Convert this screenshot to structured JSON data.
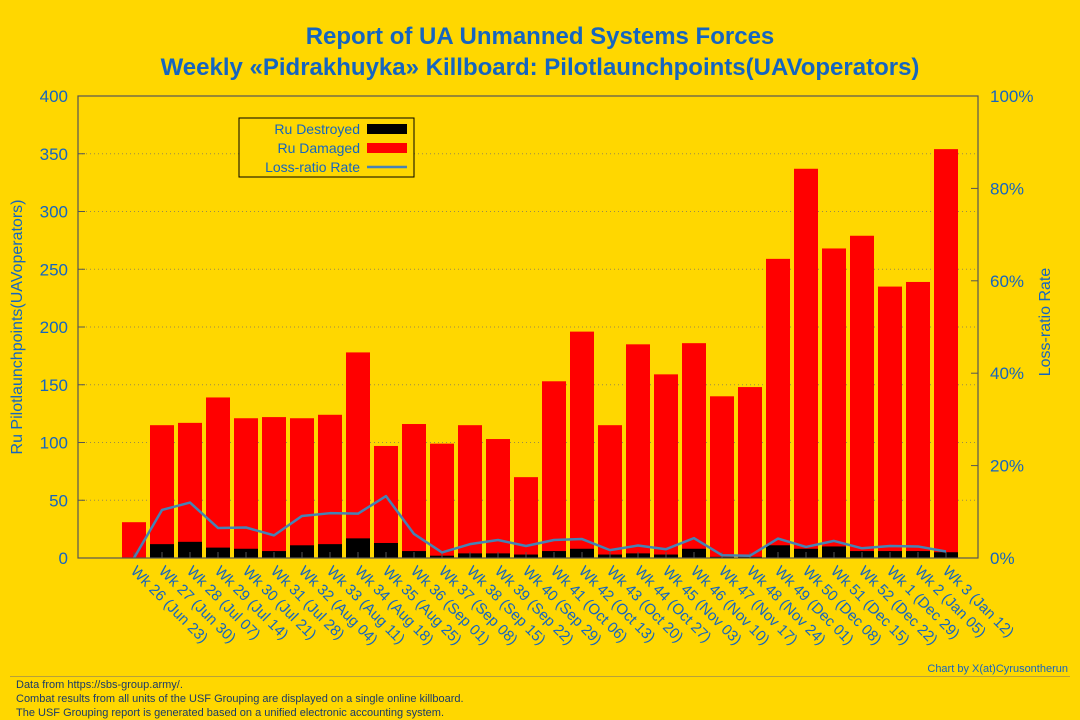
{
  "chart_data": {
    "type": "bar",
    "title": "Report of UA Unmanned Systems Forces",
    "subtitle": "Weekly «Pidrakhuyka» Killboard: Pilotlaunchpoints(UAVoperators)",
    "ylabel": "Ru Pilotlaunchpoints(UAVoperators)",
    "y2label": "Loss-ratio Rate",
    "ylim": [
      0,
      400
    ],
    "y2lim": [
      0,
      100
    ],
    "yticks": [
      "0",
      "50",
      "100",
      "150",
      "200",
      "250",
      "300",
      "350",
      "400"
    ],
    "y2ticks": [
      "0%",
      "20%",
      "40%",
      "60%",
      "80%",
      "100%"
    ],
    "legend_position": "top-left",
    "categories": [
      "Wk 26 (Jun 23)",
      "Wk 27 (Jun 30)",
      "Wk 28 (Jul 07)",
      "Wk 29 (Jul 14)",
      "Wk 30 (Jul 21)",
      "Wk 31 (Jul 28)",
      "Wk 32 (Aug 04)",
      "Wk 33 (Aug 11)",
      "Wk 34 (Aug 18)",
      "Wk 35 (Aug 25)",
      "Wk 36 (Sep 01)",
      "Wk 37 (Sep 08)",
      "Wk 38 (Sep 15)",
      "Wk 39 (Sep 22)",
      "Wk 40 (Sep 29)",
      "Wk 41 (Oct 06)",
      "Wk 42 (Oct 13)",
      "Wk 43 (Oct 20)",
      "Wk 44 (Oct 27)",
      "Wk 45 (Nov 03)",
      "Wk 46 (Nov 10)",
      "Wk 47 (Nov 17)",
      "Wk 48 (Nov 24)",
      "Wk 49 (Dec 01)",
      "Wk 50 (Dec 08)",
      "Wk 51 (Dec 15)",
      "Wk 52 (Dec 22)",
      "Wk 1 (Dec 29)",
      "Wk 2 (Jan 05)",
      "Wk 3 (Jan 12)"
    ],
    "series": [
      {
        "name": "Ru Destroyed",
        "color": "#000000",
        "values": [
          0,
          12,
          14,
          9,
          8,
          6,
          11,
          12,
          17,
          13,
          6,
          2,
          4,
          4,
          3,
          6,
          8,
          3,
          4,
          3,
          8,
          1,
          1,
          11,
          8,
          10,
          6,
          6,
          6,
          5
        ]
      },
      {
        "name": "Ru Damaged",
        "color": "#FF0000",
        "values": [
          31,
          115,
          117,
          139,
          121,
          122,
          121,
          124,
          178,
          97,
          116,
          99,
          115,
          103,
          70,
          153,
          196,
          115,
          185,
          159,
          186,
          140,
          148,
          259,
          337,
          268,
          279,
          235,
          239,
          354
        ]
      },
      {
        "name": "Loss-ratio Rate",
        "color": "#4682B4",
        "type": "line",
        "values": [
          0,
          10.4,
          12,
          6.5,
          6.6,
          4.9,
          9.1,
          9.7,
          9.6,
          13.4,
          5.2,
          1.2,
          3,
          3.9,
          2.6,
          3.9,
          4.1,
          1.7,
          2.7,
          1.9,
          4.3,
          0.6,
          0.5,
          4.2,
          2.4,
          3.7,
          2.1,
          2.6,
          2.5,
          1.4
        ]
      }
    ]
  },
  "credit": "Chart by X(at)Cyrusontherun",
  "footer": [
    "Data from https://sbs-group.army/.",
    "Combat results from all units of the USF Grouping are displayed on a single online killboard.",
    "The USF Grouping report is generated based on a unified electronic accounting system."
  ]
}
